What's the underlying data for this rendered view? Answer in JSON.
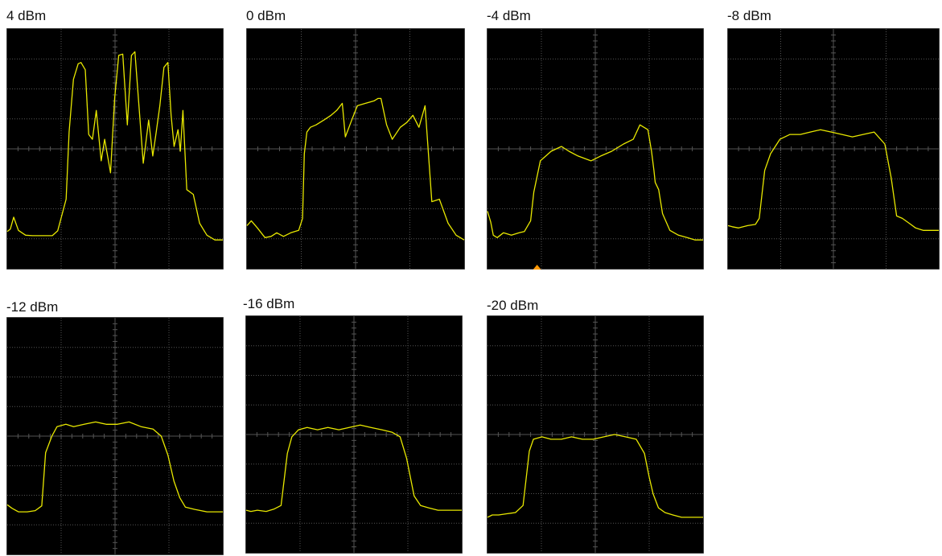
{
  "colors": {
    "screen": "#000000",
    "grid": "#555555",
    "trace": "#e8e800",
    "marker": "#ff9900",
    "frame": "#808080"
  },
  "chart_data": [
    {
      "type": "line",
      "title": "4 dBm",
      "grid": true,
      "xlim": [
        0,
        1
      ],
      "ylim": [
        0,
        1
      ],
      "x": [
        0.0,
        0.014,
        0.03,
        0.052,
        0.085,
        0.117,
        0.209,
        0.234,
        0.273,
        0.287,
        0.307,
        0.329,
        0.342,
        0.362,
        0.378,
        0.395,
        0.413,
        0.436,
        0.452,
        0.479,
        0.498,
        0.517,
        0.536,
        0.557,
        0.576,
        0.592,
        0.61,
        0.631,
        0.656,
        0.675,
        0.691,
        0.708,
        0.727,
        0.745,
        0.76,
        0.774,
        0.792,
        0.803,
        0.815,
        0.833,
        0.863,
        0.892,
        0.926,
        0.963,
        1.0
      ],
      "y": [
        0.155,
        0.165,
        0.215,
        0.16,
        0.14,
        0.138,
        0.138,
        0.158,
        0.29,
        0.57,
        0.79,
        0.855,
        0.86,
        0.83,
        0.56,
        0.54,
        0.66,
        0.45,
        0.54,
        0.4,
        0.71,
        0.89,
        0.895,
        0.6,
        0.89,
        0.905,
        0.69,
        0.44,
        0.62,
        0.47,
        0.57,
        0.68,
        0.84,
        0.86,
        0.64,
        0.51,
        0.58,
        0.49,
        0.66,
        0.33,
        0.31,
        0.19,
        0.14,
        0.12,
        0.12
      ]
    },
    {
      "type": "line",
      "title": "0 dBm",
      "grid": true,
      "xlim": [
        0,
        1
      ],
      "ylim": [
        0,
        1
      ],
      "x": [
        0.0,
        0.02,
        0.048,
        0.083,
        0.111,
        0.137,
        0.168,
        0.202,
        0.238,
        0.256,
        0.264,
        0.276,
        0.292,
        0.318,
        0.354,
        0.387,
        0.413,
        0.439,
        0.453,
        0.478,
        0.508,
        0.546,
        0.585,
        0.603,
        0.617,
        0.643,
        0.669,
        0.706,
        0.736,
        0.764,
        0.792,
        0.82,
        0.851,
        0.886,
        0.926,
        0.963,
        1.0
      ],
      "y": [
        0.18,
        0.2,
        0.17,
        0.13,
        0.135,
        0.15,
        0.135,
        0.15,
        0.16,
        0.21,
        0.48,
        0.57,
        0.59,
        0.6,
        0.62,
        0.64,
        0.66,
        0.69,
        0.55,
        0.61,
        0.68,
        0.69,
        0.7,
        0.71,
        0.71,
        0.6,
        0.54,
        0.59,
        0.61,
        0.64,
        0.59,
        0.68,
        0.28,
        0.29,
        0.19,
        0.14,
        0.12
      ]
    },
    {
      "type": "line",
      "title": "-4 dBm",
      "grid": true,
      "xlim": [
        0,
        1
      ],
      "ylim": [
        0,
        1
      ],
      "x": [
        0.0,
        0.015,
        0.027,
        0.045,
        0.074,
        0.111,
        0.147,
        0.171,
        0.2,
        0.215,
        0.245,
        0.295,
        0.343,
        0.378,
        0.42,
        0.48,
        0.525,
        0.576,
        0.631,
        0.676,
        0.707,
        0.744,
        0.761,
        0.772,
        0.778,
        0.794,
        0.812,
        0.846,
        0.886,
        0.926,
        0.963,
        1.0
      ],
      "y": [
        0.24,
        0.195,
        0.14,
        0.13,
        0.15,
        0.14,
        0.15,
        0.155,
        0.2,
        0.32,
        0.45,
        0.49,
        0.51,
        0.49,
        0.47,
        0.45,
        0.47,
        0.49,
        0.52,
        0.54,
        0.6,
        0.58,
        0.49,
        0.41,
        0.36,
        0.33,
        0.23,
        0.16,
        0.14,
        0.13,
        0.12,
        0.12
      ]
    },
    {
      "type": "line",
      "title": "-8 dBm",
      "grid": true,
      "xlim": [
        0,
        1
      ],
      "ylim": [
        0,
        1
      ],
      "x": [
        0.0,
        0.02,
        0.05,
        0.093,
        0.13,
        0.148,
        0.174,
        0.202,
        0.246,
        0.294,
        0.343,
        0.39,
        0.439,
        0.49,
        0.541,
        0.59,
        0.641,
        0.693,
        0.744,
        0.774,
        0.8,
        0.827,
        0.859,
        0.89,
        0.926,
        0.963,
        1.0
      ],
      "y": [
        0.18,
        0.175,
        0.17,
        0.18,
        0.185,
        0.21,
        0.41,
        0.48,
        0.54,
        0.56,
        0.56,
        0.57,
        0.58,
        0.57,
        0.56,
        0.55,
        0.56,
        0.57,
        0.52,
        0.38,
        0.22,
        0.21,
        0.19,
        0.17,
        0.16,
        0.16,
        0.16
      ]
    },
    {
      "type": "line",
      "title": "-12 dBm",
      "grid": true,
      "xlim": [
        0,
        1
      ],
      "ylim": [
        0,
        1
      ],
      "x": [
        0.0,
        0.022,
        0.052,
        0.093,
        0.13,
        0.16,
        0.178,
        0.207,
        0.231,
        0.272,
        0.308,
        0.357,
        0.41,
        0.459,
        0.511,
        0.565,
        0.62,
        0.676,
        0.714,
        0.745,
        0.773,
        0.8,
        0.826,
        0.87,
        0.926,
        0.963,
        1.0
      ],
      "y": [
        0.21,
        0.195,
        0.18,
        0.18,
        0.185,
        0.205,
        0.43,
        0.5,
        0.54,
        0.55,
        0.54,
        0.55,
        0.56,
        0.55,
        0.55,
        0.56,
        0.54,
        0.53,
        0.5,
        0.42,
        0.31,
        0.24,
        0.2,
        0.19,
        0.18,
        0.18,
        0.18
      ]
    },
    {
      "type": "line",
      "title": "-16 dBm",
      "grid": true,
      "xlim": [
        0,
        1
      ],
      "ylim": [
        0,
        1
      ],
      "x": [
        0.0,
        0.022,
        0.052,
        0.093,
        0.13,
        0.162,
        0.191,
        0.212,
        0.243,
        0.283,
        0.331,
        0.379,
        0.43,
        0.478,
        0.529,
        0.578,
        0.629,
        0.676,
        0.714,
        0.744,
        0.779,
        0.809,
        0.846,
        0.89,
        0.926,
        0.963,
        1.0
      ],
      "y": [
        0.18,
        0.175,
        0.18,
        0.175,
        0.185,
        0.2,
        0.42,
        0.49,
        0.52,
        0.53,
        0.52,
        0.53,
        0.52,
        0.53,
        0.54,
        0.53,
        0.52,
        0.51,
        0.49,
        0.4,
        0.24,
        0.2,
        0.19,
        0.18,
        0.18,
        0.18,
        0.18
      ]
    },
    {
      "type": "line",
      "title": "-20 dBm",
      "grid": true,
      "xlim": [
        0,
        1
      ],
      "ylim": [
        0,
        1
      ],
      "x": [
        0.0,
        0.022,
        0.052,
        0.089,
        0.13,
        0.165,
        0.194,
        0.213,
        0.253,
        0.294,
        0.343,
        0.39,
        0.44,
        0.49,
        0.54,
        0.59,
        0.64,
        0.69,
        0.728,
        0.75,
        0.768,
        0.793,
        0.823,
        0.86,
        0.9,
        0.93,
        0.963,
        1.0
      ],
      "y": [
        0.15,
        0.16,
        0.16,
        0.165,
        0.17,
        0.2,
        0.43,
        0.48,
        0.49,
        0.48,
        0.48,
        0.49,
        0.48,
        0.48,
        0.49,
        0.5,
        0.49,
        0.48,
        0.42,
        0.32,
        0.25,
        0.19,
        0.17,
        0.16,
        0.15,
        0.15,
        0.15,
        0.15
      ]
    }
  ]
}
